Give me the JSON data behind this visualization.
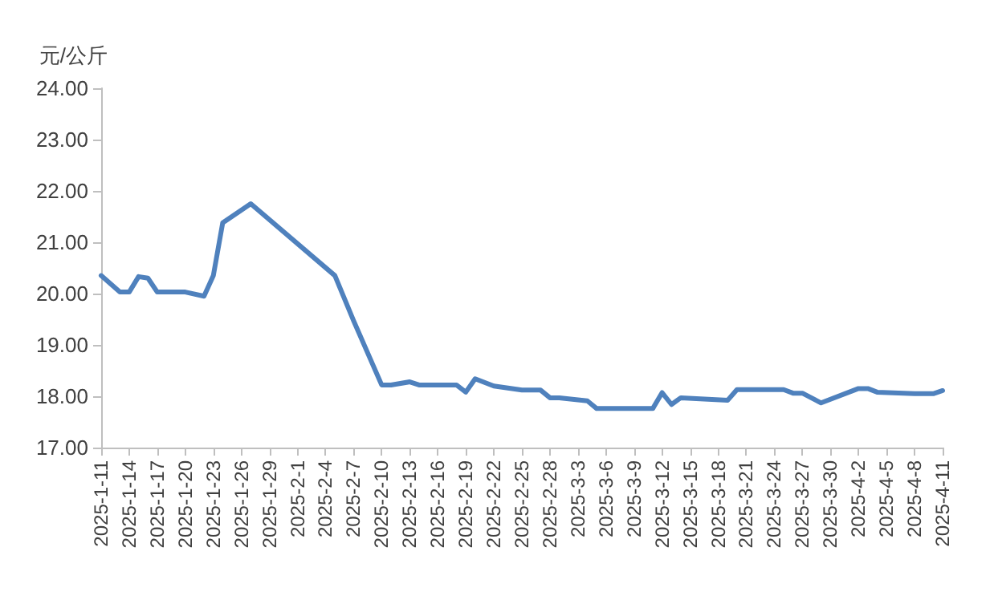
{
  "chart_data": {
    "type": "line",
    "ylabel": "元/公斤",
    "x": [
      "2025-01-11",
      "2025-01-13",
      "2025-01-14",
      "2025-01-15",
      "2025-01-16",
      "2025-01-17",
      "2025-01-20",
      "2025-01-22",
      "2025-01-23",
      "2025-01-24",
      "2025-01-27",
      "2025-02-05",
      "2025-02-07",
      "2025-02-10",
      "2025-02-11",
      "2025-02-13",
      "2025-02-14",
      "2025-02-18",
      "2025-02-19",
      "2025-02-20",
      "2025-02-22",
      "2025-02-25",
      "2025-02-27",
      "2025-02-28",
      "2025-03-01",
      "2025-03-04",
      "2025-03-05",
      "2025-03-11",
      "2025-03-12",
      "2025-03-13",
      "2025-03-14",
      "2025-03-19",
      "2025-03-20",
      "2025-03-25",
      "2025-03-26",
      "2025-03-27",
      "2025-03-29",
      "2025-04-02",
      "2025-04-03",
      "2025-04-04",
      "2025-04-08",
      "2025-04-10",
      "2025-04-11"
    ],
    "series": [
      {
        "color": "#4f81bd",
        "values": [
          20.35,
          20.03,
          20.03,
          20.33,
          20.3,
          20.03,
          20.03,
          19.95,
          20.35,
          21.38,
          21.75,
          20.35,
          19.47,
          18.22,
          18.22,
          18.28,
          18.22,
          18.22,
          18.08,
          18.34,
          18.2,
          18.12,
          18.12,
          17.97,
          17.97,
          17.91,
          17.76,
          17.76,
          18.07,
          17.84,
          17.97,
          17.92,
          18.13,
          18.13,
          18.06,
          18.06,
          17.87,
          18.15,
          18.15,
          18.08,
          18.05,
          18.05,
          18.11
        ]
      }
    ],
    "xlim": [
      "2025-01-11",
      "2025-04-11"
    ],
    "xticks": [
      {
        "value": "2025-01-11",
        "label": "2025-1-11"
      },
      {
        "value": "2025-01-14",
        "label": "2025-1-14"
      },
      {
        "value": "2025-01-17",
        "label": "2025-1-17"
      },
      {
        "value": "2025-01-20",
        "label": "2025-1-20"
      },
      {
        "value": "2025-01-23",
        "label": "2025-1-23"
      },
      {
        "value": "2025-01-26",
        "label": "2025-1-26"
      },
      {
        "value": "2025-01-29",
        "label": "2025-1-29"
      },
      {
        "value": "2025-02-01",
        "label": "2025-2-1"
      },
      {
        "value": "2025-02-04",
        "label": "2025-2-4"
      },
      {
        "value": "2025-02-07",
        "label": "2025-2-7"
      },
      {
        "value": "2025-02-10",
        "label": "2025-2-10"
      },
      {
        "value": "2025-02-13",
        "label": "2025-2-13"
      },
      {
        "value": "2025-02-16",
        "label": "2025-2-16"
      },
      {
        "value": "2025-02-19",
        "label": "2025-2-19"
      },
      {
        "value": "2025-02-22",
        "label": "2025-2-22"
      },
      {
        "value": "2025-02-25",
        "label": "2025-2-25"
      },
      {
        "value": "2025-02-28",
        "label": "2025-2-28"
      },
      {
        "value": "2025-03-03",
        "label": "2025-3-3"
      },
      {
        "value": "2025-03-06",
        "label": "2025-3-6"
      },
      {
        "value": "2025-03-09",
        "label": "2025-3-9"
      },
      {
        "value": "2025-03-12",
        "label": "2025-3-12"
      },
      {
        "value": "2025-03-15",
        "label": "2025-3-15"
      },
      {
        "value": "2025-03-18",
        "label": "2025-3-18"
      },
      {
        "value": "2025-03-21",
        "label": "2025-3-21"
      },
      {
        "value": "2025-03-24",
        "label": "2025-3-24"
      },
      {
        "value": "2025-03-27",
        "label": "2025-3-27"
      },
      {
        "value": "2025-03-30",
        "label": "2025-3-30"
      },
      {
        "value": "2025-04-02",
        "label": "2025-4-2"
      },
      {
        "value": "2025-04-05",
        "label": "2025-4-5"
      },
      {
        "value": "2025-04-08",
        "label": "2025-4-8"
      },
      {
        "value": "2025-04-11",
        "label": "2025-4-11"
      }
    ],
    "ylim": [
      17,
      24
    ],
    "yticks": [
      {
        "value": 17,
        "label": "17.00"
      },
      {
        "value": 18,
        "label": "18.00"
      },
      {
        "value": 19,
        "label": "19.00"
      },
      {
        "value": 20,
        "label": "20.00"
      },
      {
        "value": 21,
        "label": "21.00"
      },
      {
        "value": 22,
        "label": "22.00"
      },
      {
        "value": 23,
        "label": "23.00"
      },
      {
        "value": 24,
        "label": "24.00"
      }
    ],
    "grid": false,
    "marker": "none",
    "line_style": "solid"
  }
}
